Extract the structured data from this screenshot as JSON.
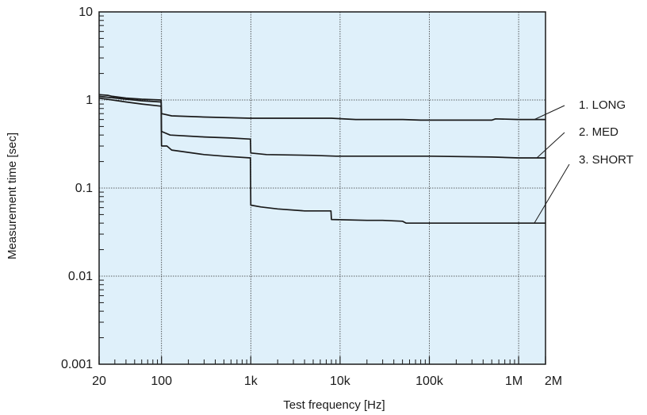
{
  "chart_data": {
    "type": "line",
    "xlabel": "Test frequency [Hz]",
    "ylabel": "Measurement time [sec]",
    "x_scale": "log",
    "y_scale": "log",
    "xlim": [
      20,
      2000000
    ],
    "ylim": [
      0.001,
      10
    ],
    "grid": true,
    "colors": {
      "plot_bg": "#dff0fa",
      "line": "#1a1a1a",
      "grid": "#333333"
    },
    "x_ticks": [
      {
        "value": 20,
        "label": "20"
      },
      {
        "value": 100,
        "label": "100"
      },
      {
        "value": 1000,
        "label": "1k"
      },
      {
        "value": 10000,
        "label": "10k"
      },
      {
        "value": 100000,
        "label": "100k"
      },
      {
        "value": 1000000,
        "label": "1M"
      },
      {
        "value": 2000000,
        "label": "2M"
      }
    ],
    "y_ticks": [
      {
        "value": 0.001,
        "label": "0.001"
      },
      {
        "value": 0.01,
        "label": "0.01"
      },
      {
        "value": 0.1,
        "label": "0.1"
      },
      {
        "value": 1,
        "label": "1"
      },
      {
        "value": 10,
        "label": "10"
      }
    ],
    "series": [
      {
        "name": "1. LONG",
        "points": [
          [
            20,
            1.15
          ],
          [
            25,
            1.13
          ],
          [
            28,
            1.1
          ],
          [
            40,
            1.05
          ],
          [
            60,
            1.02
          ],
          [
            99,
            1.0
          ],
          [
            100,
            0.7
          ],
          [
            130,
            0.66
          ],
          [
            300,
            0.64
          ],
          [
            1000,
            0.62
          ],
          [
            8000,
            0.62
          ],
          [
            15000,
            0.6
          ],
          [
            50000,
            0.6
          ],
          [
            80000,
            0.59
          ],
          [
            500000,
            0.59
          ],
          [
            550000,
            0.61
          ],
          [
            1000000,
            0.6
          ],
          [
            2000000,
            0.6
          ]
        ]
      },
      {
        "name": "2. MED",
        "points": [
          [
            20,
            1.1
          ],
          [
            40,
            1.02
          ],
          [
            60,
            0.98
          ],
          [
            99,
            0.95
          ],
          [
            100,
            0.44
          ],
          [
            125,
            0.4
          ],
          [
            300,
            0.38
          ],
          [
            600,
            0.37
          ],
          [
            990,
            0.36
          ],
          [
            1000,
            0.25
          ],
          [
            1500,
            0.24
          ],
          [
            5000,
            0.235
          ],
          [
            9000,
            0.23
          ],
          [
            30000,
            0.23
          ],
          [
            100000,
            0.23
          ],
          [
            500000,
            0.225
          ],
          [
            1000000,
            0.22
          ],
          [
            2000000,
            0.22
          ]
        ]
      },
      {
        "name": "3. SHORT",
        "points": [
          [
            20,
            1.05
          ],
          [
            40,
            0.95
          ],
          [
            60,
            0.9
          ],
          [
            99,
            0.85
          ],
          [
            100,
            0.3
          ],
          [
            115,
            0.3
          ],
          [
            130,
            0.27
          ],
          [
            300,
            0.24
          ],
          [
            500,
            0.23
          ],
          [
            990,
            0.22
          ],
          [
            1000,
            0.064
          ],
          [
            1300,
            0.061
          ],
          [
            2000,
            0.058
          ],
          [
            4000,
            0.055
          ],
          [
            7900,
            0.055
          ],
          [
            8000,
            0.044
          ],
          [
            20000,
            0.043
          ],
          [
            30000,
            0.043
          ],
          [
            50000,
            0.042
          ],
          [
            55000,
            0.04
          ],
          [
            100000,
            0.04
          ],
          [
            500000,
            0.04
          ],
          [
            1000000,
            0.04
          ],
          [
            2000000,
            0.04
          ]
        ]
      }
    ],
    "legend": [
      {
        "label": "1. LONG",
        "series": "1. LONG",
        "anchor_x": 1500000,
        "anchor_y": 0.6
      },
      {
        "label": "2. MED",
        "series": "2. MED",
        "anchor_x": 1600000,
        "anchor_y": 0.22
      },
      {
        "label": "3. SHORT",
        "series": "3. SHORT",
        "anchor_x": 1500000,
        "anchor_y": 0.04
      }
    ]
  }
}
